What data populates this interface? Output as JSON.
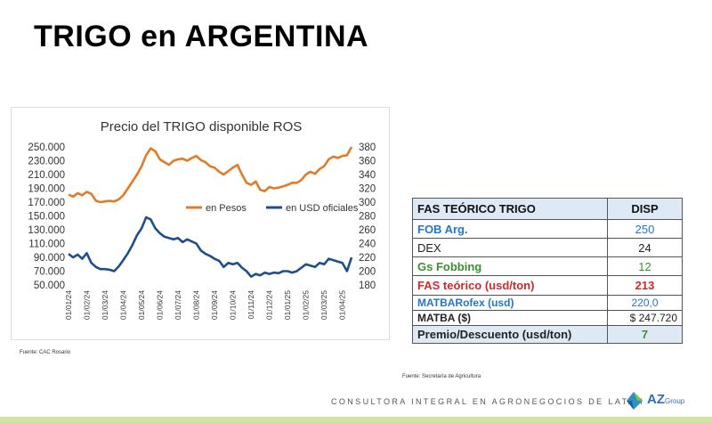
{
  "page": {
    "title": "TRIGO en ARGENTINA",
    "chart_source": "Fuente: CAC Rosario",
    "table_source": "Fuente: Secretaría de Agricultura",
    "footer": "CONSULTORA INTEGRAL EN AGRONEGOCIOS DE LATAM",
    "logo_main": "AZ",
    "logo_sub": "Group"
  },
  "colors": {
    "pesos": "#e07b2a",
    "usd": "#1f4e8c",
    "header_bg": "#dde9f5",
    "accent_blue": "#2376c9",
    "accent_green": "#3a8f2e",
    "accent_red": "#d0282d"
  },
  "chart_data": {
    "type": "line",
    "title": "Precio del TRIGO disponible ROS",
    "legend": [
      "en Pesos",
      "en USD oficiales"
    ],
    "legend_position": "middle-right",
    "x_ticks": [
      "01/01/24",
      "01/02/24",
      "01/03/24",
      "01/04/24",
      "01/05/24",
      "01/06/24",
      "01/07/24",
      "01/08/24",
      "01/09/24",
      "01/10/24",
      "01/11/24",
      "01/12/24",
      "01/01/25",
      "01/02/25",
      "01/03/25",
      "01/04/25"
    ],
    "y_left_ticks": [
      "250.000",
      "230.000",
      "210.000",
      "190.000",
      "170.000",
      "150.000",
      "130.000",
      "110.000",
      "90.000",
      "70.000",
      "50.000"
    ],
    "y_right_ticks": [
      "380",
      "360",
      "340",
      "320",
      "300",
      "280",
      "260",
      "240",
      "220",
      "200",
      "180"
    ],
    "y_left_range": [
      50000,
      250000
    ],
    "y_right_range": [
      180,
      380
    ],
    "grid": false,
    "series": [
      {
        "name": "en Pesos",
        "axis": "left",
        "x": [
          0,
          0.25,
          0.5,
          0.75,
          1,
          1.25,
          1.5,
          1.75,
          2,
          2.25,
          2.5,
          2.75,
          3,
          3.25,
          3.5,
          3.75,
          4,
          4.25,
          4.5,
          4.75,
          5,
          5.25,
          5.5,
          5.75,
          6,
          6.25,
          6.5,
          6.75,
          7,
          7.25,
          7.5,
          7.75,
          8,
          8.25,
          8.5,
          8.75,
          9,
          9.25,
          9.5,
          9.75,
          10,
          10.25,
          10.5,
          10.75,
          11,
          11.25,
          11.5,
          11.75,
          12,
          12.25,
          12.5,
          12.75,
          13,
          13.25,
          13.5,
          13.75,
          14,
          14.25,
          14.5,
          14.75,
          15,
          15.25,
          15.5
        ],
        "values": [
          181000,
          178000,
          183000,
          180000,
          185000,
          182000,
          172000,
          170000,
          171000,
          172000,
          171000,
          174000,
          180000,
          190000,
          200000,
          210000,
          222000,
          238000,
          248000,
          244000,
          232000,
          228000,
          224000,
          230000,
          232000,
          233000,
          230000,
          234000,
          237000,
          231000,
          228000,
          222000,
          220000,
          214000,
          210000,
          215000,
          220000,
          224000,
          210000,
          198000,
          195000,
          200000,
          188000,
          186000,
          192000,
          190000,
          191000,
          193000,
          195000,
          198000,
          198000,
          202000,
          210000,
          214000,
          211000,
          218000,
          222000,
          232000,
          236000,
          234000,
          237000,
          238000,
          250000
        ]
      },
      {
        "name": "en USD oficiales",
        "axis": "right",
        "x": [
          0,
          0.25,
          0.5,
          0.75,
          1,
          1.25,
          1.5,
          1.75,
          2,
          2.25,
          2.5,
          2.75,
          3,
          3.25,
          3.5,
          3.75,
          4,
          4.25,
          4.5,
          4.75,
          5,
          5.25,
          5.5,
          5.75,
          6,
          6.25,
          6.5,
          6.75,
          7,
          7.25,
          7.5,
          7.75,
          8,
          8.25,
          8.5,
          8.75,
          9,
          9.25,
          9.5,
          9.75,
          10,
          10.25,
          10.5,
          10.75,
          11,
          11.25,
          11.5,
          11.75,
          12,
          12.25,
          12.5,
          12.75,
          13,
          13.25,
          13.5,
          13.75,
          14,
          14.25,
          14.5,
          14.75,
          15,
          15.25,
          15.5
        ],
        "values": [
          225,
          220,
          224,
          218,
          226,
          212,
          206,
          203,
          203,
          202,
          200,
          207,
          216,
          226,
          238,
          252,
          262,
          278,
          275,
          262,
          255,
          250,
          248,
          246,
          248,
          242,
          246,
          243,
          240,
          230,
          225,
          222,
          218,
          215,
          206,
          212,
          210,
          212,
          205,
          200,
          192,
          196,
          194,
          198,
          196,
          198,
          197,
          200,
          200,
          198,
          200,
          205,
          210,
          208,
          206,
          212,
          210,
          218,
          216,
          214,
          212,
          200,
          220
        ]
      }
    ]
  },
  "table": {
    "header": {
      "label": "FAS TEÓRICO TRIGO",
      "col": "DISP"
    },
    "rows": [
      {
        "label": "FOB Arg.",
        "value": "250"
      },
      {
        "label": "DEX",
        "value": "24"
      },
      {
        "label": "Gs Fobbing",
        "value": "12"
      },
      {
        "label": "FAS teórico (usd/ton)",
        "value": "213"
      },
      {
        "label": "MATBARofex (usd)",
        "value": "220,0"
      },
      {
        "label": "MATBA ($)",
        "value": "$ 247.720"
      },
      {
        "label": "Premio/Descuento (usd/ton)",
        "value": "7"
      }
    ]
  }
}
